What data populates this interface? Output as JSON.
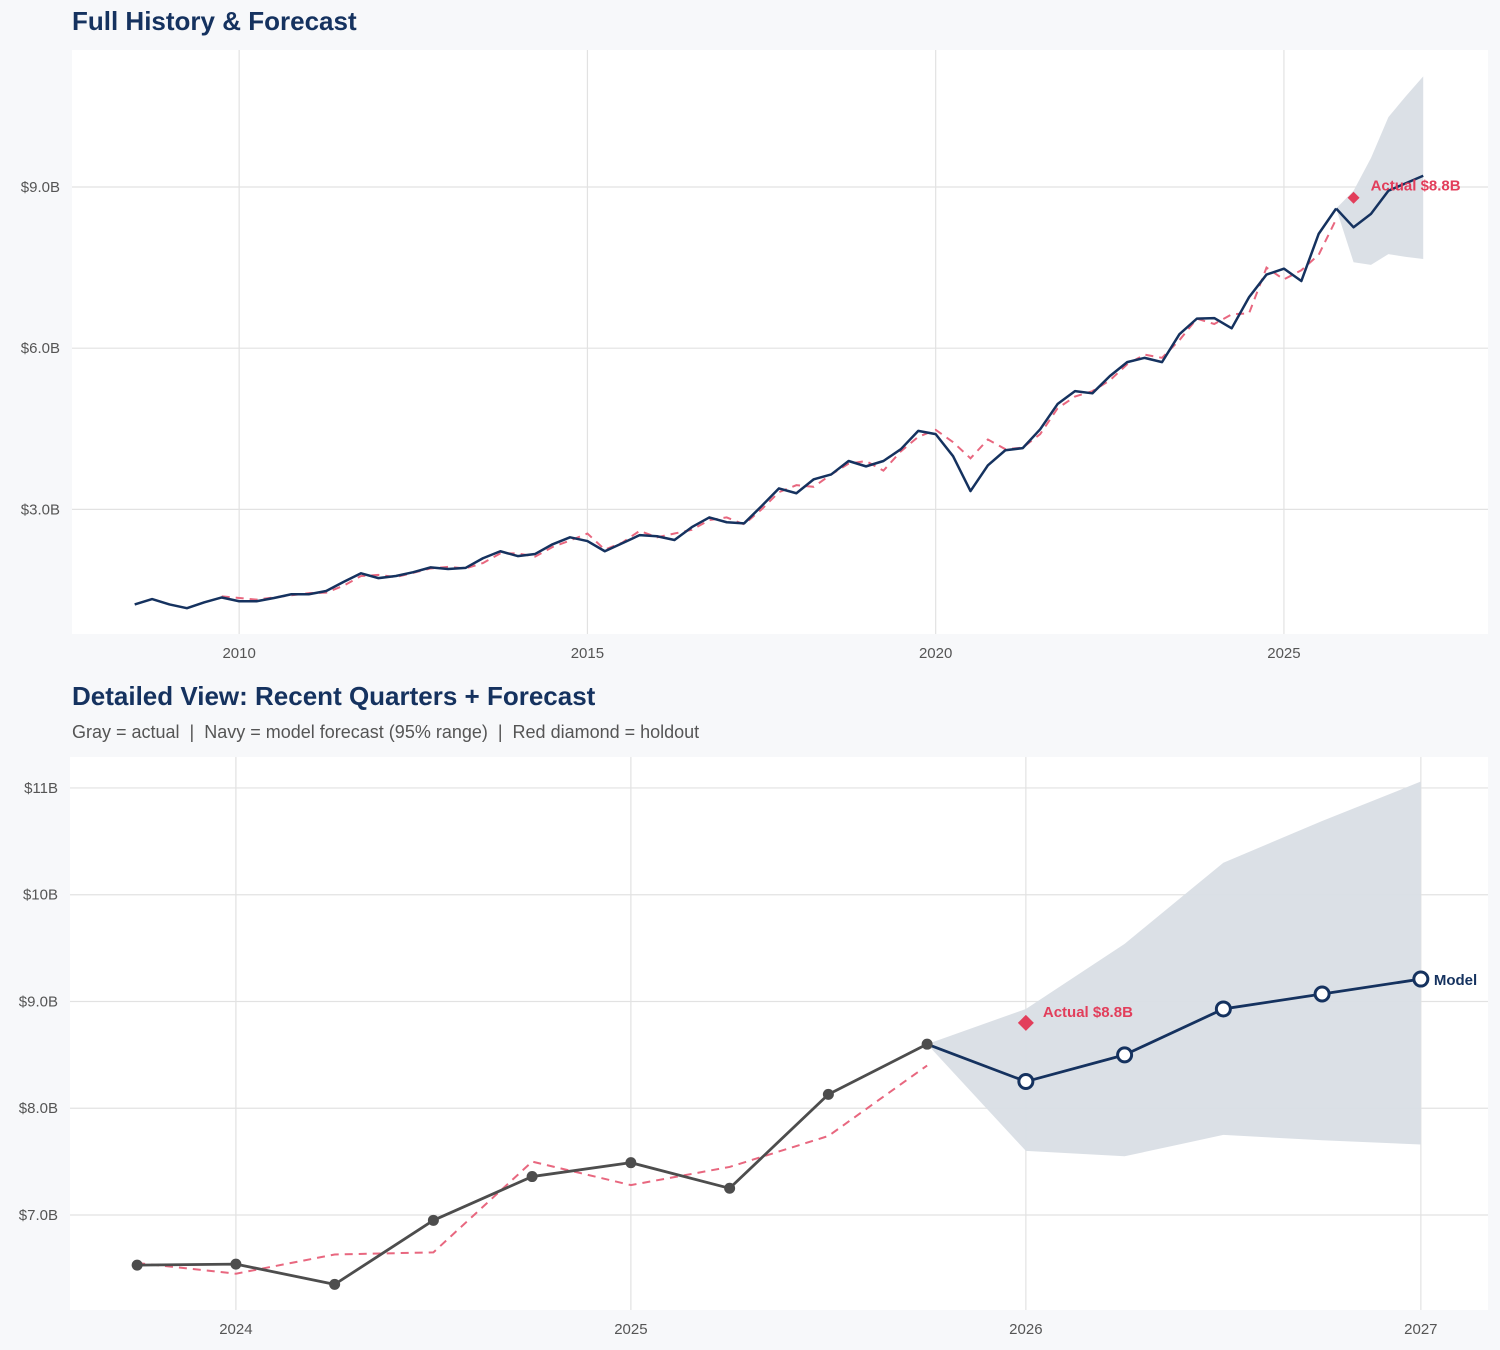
{
  "colors": {
    "navy": "#15325f",
    "fit": "#e8677f",
    "holdout": "#e23e5b",
    "actual_gray": "#4d4d4d",
    "band": "#d9dee5",
    "grid": "#e2e2e2",
    "background": "#f7f8fa",
    "plot": "#ffffff"
  },
  "chart_data": [
    {
      "type": "line",
      "title": "Full History & Forecast",
      "xlim": [
        2007.6,
        2027.93
      ],
      "ylim": [
        0.68,
        11.55
      ],
      "grid": true,
      "x_ticks": [
        2010,
        2015,
        2020,
        2025
      ],
      "x_tick_labels": [
        "2010",
        "2015",
        "2020",
        "2025"
      ],
      "y_ticks": [
        3,
        6,
        9
      ],
      "y_tick_labels": [
        "$3.0B",
        "$6.0B",
        "$9.0B"
      ],
      "actual": {
        "x": [
          2008.5,
          2008.75,
          2009,
          2009.25,
          2009.5,
          2009.75,
          2010,
          2010.25,
          2010.5,
          2010.75,
          2011,
          2011.25,
          2011.5,
          2011.75,
          2012,
          2012.25,
          2012.5,
          2012.75,
          2013,
          2013.25,
          2013.5,
          2013.75,
          2014,
          2014.25,
          2014.5,
          2014.75,
          2015,
          2015.25,
          2015.5,
          2015.75,
          2016,
          2016.25,
          2016.5,
          2016.75,
          2017,
          2017.25,
          2017.5,
          2017.75,
          2018,
          2018.25,
          2018.5,
          2018.75,
          2019,
          2019.25,
          2019.5,
          2019.75,
          2020,
          2020.25,
          2020.5,
          2020.75,
          2021,
          2021.25,
          2021.5,
          2021.75,
          2022,
          2022.25,
          2022.5,
          2022.75,
          2023,
          2023.25,
          2023.5,
          2023.75,
          2024,
          2024.25,
          2024.5,
          2024.75,
          2025,
          2025.25,
          2025.5,
          2025.75
        ],
        "y": [
          1.23,
          1.33,
          1.23,
          1.16,
          1.27,
          1.36,
          1.29,
          1.29,
          1.35,
          1.42,
          1.42,
          1.48,
          1.65,
          1.81,
          1.72,
          1.76,
          1.83,
          1.92,
          1.89,
          1.91,
          2.09,
          2.22,
          2.13,
          2.17,
          2.35,
          2.48,
          2.41,
          2.22,
          2.37,
          2.52,
          2.5,
          2.43,
          2.67,
          2.85,
          2.76,
          2.74,
          3.06,
          3.39,
          3.3,
          3.56,
          3.65,
          3.9,
          3.8,
          3.9,
          4.12,
          4.46,
          4.4,
          3.99,
          3.34,
          3.82,
          4.1,
          4.14,
          4.49,
          4.96,
          5.2,
          5.16,
          5.48,
          5.74,
          5.82,
          5.74,
          6.26,
          6.55,
          6.56,
          6.37,
          6.95,
          7.37,
          7.48,
          7.25,
          8.13,
          8.6
        ]
      },
      "fitted": {
        "x": [
          2009.75,
          2010,
          2010.25,
          2010.5,
          2010.75,
          2011,
          2011.25,
          2011.5,
          2011.75,
          2012,
          2012.25,
          2012.5,
          2012.75,
          2013,
          2013.25,
          2013.5,
          2013.75,
          2014,
          2014.25,
          2014.5,
          2014.75,
          2015,
          2015.25,
          2015.5,
          2015.75,
          2016,
          2016.25,
          2016.5,
          2016.75,
          2017,
          2017.25,
          2017.5,
          2017.75,
          2018,
          2018.25,
          2018.5,
          2018.75,
          2019,
          2019.25,
          2019.5,
          2019.75,
          2020,
          2020.25,
          2020.5,
          2020.75,
          2021,
          2021.25,
          2021.5,
          2021.75,
          2022,
          2022.25,
          2022.5,
          2022.75,
          2023,
          2023.25,
          2023.5,
          2023.75,
          2024,
          2024.25,
          2024.5,
          2024.75,
          2025,
          2025.25,
          2025.5,
          2025.75
        ],
        "y": [
          1.38,
          1.35,
          1.32,
          1.36,
          1.4,
          1.44,
          1.45,
          1.58,
          1.76,
          1.78,
          1.74,
          1.82,
          1.9,
          1.93,
          1.9,
          2.0,
          2.18,
          2.18,
          2.12,
          2.3,
          2.42,
          2.55,
          2.25,
          2.38,
          2.6,
          2.48,
          2.55,
          2.62,
          2.8,
          2.85,
          2.72,
          3.0,
          3.32,
          3.45,
          3.42,
          3.65,
          3.85,
          3.9,
          3.72,
          4.08,
          4.35,
          4.48,
          4.25,
          3.95,
          4.3,
          4.12,
          4.15,
          4.4,
          4.88,
          5.1,
          5.2,
          5.4,
          5.7,
          5.88,
          5.82,
          6.15,
          6.55,
          6.45,
          6.63,
          6.65,
          7.5,
          7.28,
          7.45,
          7.74,
          8.4
        ]
      },
      "forecast": {
        "x": [
          2025.75,
          2026,
          2026.25,
          2026.5,
          2026.75,
          2027
        ],
        "y": [
          8.6,
          8.25,
          8.5,
          8.93,
          9.07,
          9.21
        ],
        "lower": [
          8.6,
          7.6,
          7.55,
          7.75,
          7.7,
          7.66
        ],
        "upper": [
          8.6,
          8.93,
          9.54,
          10.3,
          10.69,
          11.06
        ]
      },
      "holdout": {
        "x": 2026,
        "y": 8.8,
        "label": "Actual $8.8B"
      }
    },
    {
      "type": "line",
      "title": "Detailed View: Recent Quarters + Forecast",
      "subtitle": "Gray = actual  |  Navy = model forecast (95% range)  |  Red diamond = holdout",
      "xlim": [
        2023.58,
        2027.17
      ],
      "ylim": [
        6.11,
        11.29
      ],
      "grid": true,
      "x_ticks": [
        2024,
        2025,
        2026,
        2027
      ],
      "x_tick_labels": [
        "2024",
        "2025",
        "2026",
        "2027"
      ],
      "y_ticks": [
        7,
        8,
        9,
        10,
        11
      ],
      "y_tick_labels": [
        "$7.0B",
        "$8.0B",
        "$9.0B",
        "$10B",
        "$11B"
      ],
      "actual": {
        "x": [
          2023.75,
          2024,
          2024.25,
          2024.5,
          2024.75,
          2025,
          2025.25,
          2025.5,
          2025.75
        ],
        "y": [
          6.53,
          6.54,
          6.35,
          6.95,
          7.36,
          7.49,
          7.25,
          8.13,
          8.6
        ]
      },
      "fitted": {
        "x": [
          2023.75,
          2024,
          2024.25,
          2024.5,
          2024.75,
          2025,
          2025.25,
          2025.5,
          2025.75
        ],
        "y": [
          6.55,
          6.45,
          6.63,
          6.65,
          7.5,
          7.28,
          7.45,
          7.74,
          8.4
        ]
      },
      "forecast": {
        "x": [
          2025.75,
          2026,
          2026.25,
          2026.5,
          2026.75,
          2027
        ],
        "y": [
          8.6,
          8.25,
          8.5,
          8.93,
          9.07,
          9.21
        ],
        "lower": [
          8.6,
          7.6,
          7.55,
          7.75,
          7.7,
          7.66
        ],
        "upper": [
          8.6,
          8.93,
          9.54,
          10.3,
          10.69,
          11.06
        ],
        "label": "Model"
      },
      "holdout": {
        "x": 2026,
        "y": 8.8,
        "label": "Actual $8.8B"
      }
    }
  ]
}
